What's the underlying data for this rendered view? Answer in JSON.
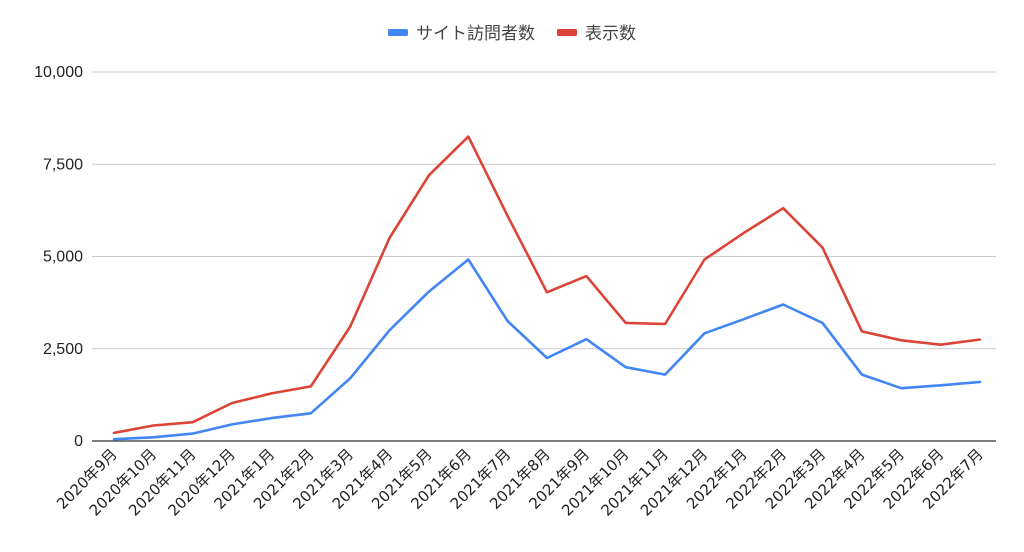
{
  "chart_data": {
    "type": "line",
    "title": "",
    "xlabel": "",
    "ylabel": "",
    "ylim": [
      0,
      10000
    ],
    "yticks": [
      "0",
      "2,500",
      "5,000",
      "7,500",
      "10,000"
    ],
    "ytick_values": [
      0,
      2500,
      5000,
      7500,
      10000
    ],
    "grid": true,
    "legend_position": "top-center",
    "categories": [
      "2020年9月",
      "2020年10月",
      "2020年11月",
      "2020年12月",
      "2021年1月",
      "2021年2月",
      "2021年3月",
      "2021年4月",
      "2021年5月",
      "2021年6月",
      "2021年7月",
      "2021年8月",
      "2021年9月",
      "2021年10月",
      "2021年11月",
      "2021年12月",
      "2022年1月",
      "2022年2月",
      "2022年3月",
      "2022年4月",
      "2022年5月",
      "2022年6月",
      "2022年7月"
    ],
    "series": [
      {
        "name": "サイト訪問者数",
        "color": "#4285f4",
        "values": [
          50,
          100,
          200,
          450,
          620,
          750,
          1700,
          3000,
          4050,
          4920,
          3250,
          2250,
          2760,
          2000,
          1800,
          2920,
          3300,
          3700,
          3200,
          1800,
          1430,
          1510,
          1600
        ]
      },
      {
        "name": "表示数",
        "color": "#db4437",
        "values": [
          220,
          420,
          510,
          1030,
          1290,
          1480,
          3100,
          5500,
          7200,
          8250,
          6100,
          4030,
          4470,
          3200,
          3170,
          4920,
          5640,
          6310,
          5240,
          2970,
          2730,
          2610,
          2750
        ]
      }
    ]
  }
}
